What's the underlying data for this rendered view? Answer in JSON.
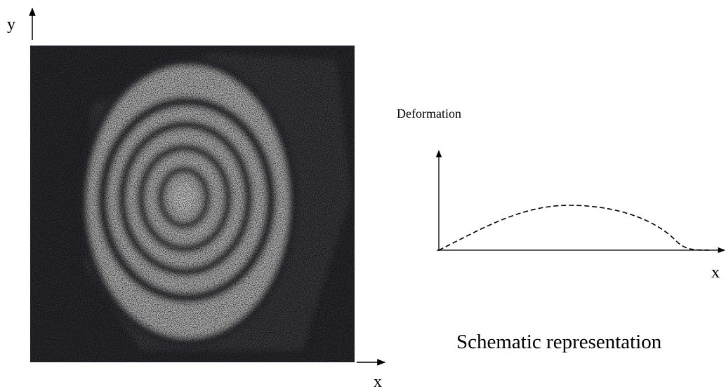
{
  "image_axes": {
    "y_label": "y",
    "x_label": "x"
  },
  "schematic": {
    "y_label": "Deformation",
    "x_label": "x",
    "caption": "Schematic representation"
  }
}
